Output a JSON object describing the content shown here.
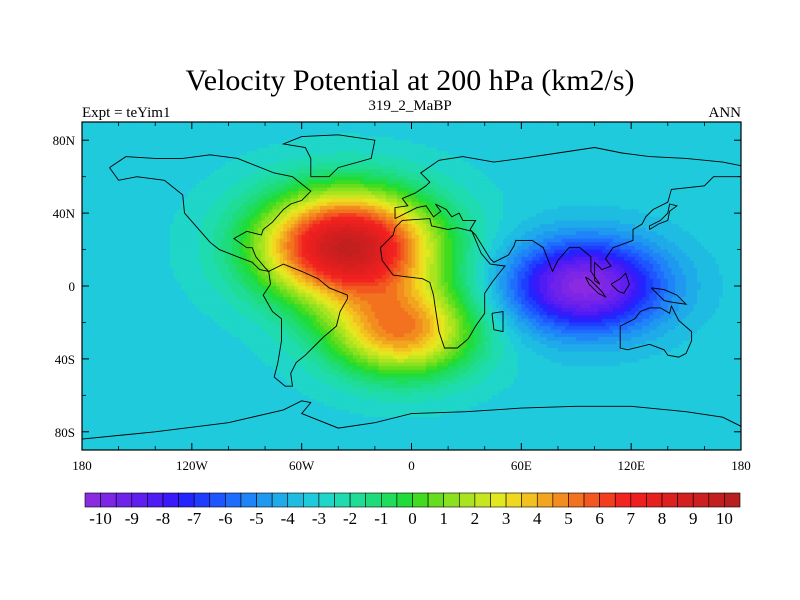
{
  "title": "Velocity Potential at 200 hPa (km2/s)",
  "left_string": "Expt = teYim1",
  "center_string": "319_2_MaBP",
  "right_string": "ANN",
  "chart_data": {
    "type": "heatmap",
    "title": "Velocity Potential at 200 hPa (km2/s)",
    "xlim": [
      -180,
      180
    ],
    "ylim": [
      -90,
      90
    ],
    "x_ticks": [
      {
        "value": -180,
        "label": "180"
      },
      {
        "value": -120,
        "label": "120W"
      },
      {
        "value": -60,
        "label": "60W"
      },
      {
        "value": 0,
        "label": "0"
      },
      {
        "value": 60,
        "label": "60E"
      },
      {
        "value": 120,
        "label": "120E"
      },
      {
        "value": 180,
        "label": "180"
      }
    ],
    "y_ticks": [
      {
        "value": 80,
        "label": "80N"
      },
      {
        "value": 40,
        "label": "40N"
      },
      {
        "value": 0,
        "label": "0"
      },
      {
        "value": -40,
        "label": "40S"
      },
      {
        "value": -80,
        "label": "80S"
      }
    ],
    "background_value": -3.2,
    "field_features": [
      {
        "name": "maximum",
        "lon": -35,
        "lat": 22,
        "value": 9.6,
        "lon_radius": 48,
        "lat_radius": 30
      },
      {
        "name": "secondary maximum",
        "lon": -5,
        "lat": -25,
        "value": 4.5,
        "lon_radius": 40,
        "lat_radius": 25
      },
      {
        "name": "minimum",
        "lon": 95,
        "lat": 0,
        "value": -10.3,
        "lon_radius": 42,
        "lat_radius": 25
      }
    ],
    "colorbar": {
      "min": -10.5,
      "max": 10.5,
      "step": 0.5,
      "tick_values": [
        -10,
        -9,
        -8,
        -7,
        -6,
        -5,
        -4,
        -3,
        -2,
        -1,
        0,
        1,
        2,
        3,
        4,
        5,
        6,
        7,
        8,
        9,
        10
      ],
      "tick_labels": [
        "-10",
        "-9",
        "-8",
        "-7",
        "-6",
        "-5",
        "-4",
        "-3",
        "-2",
        "-1",
        "0",
        "1",
        "2",
        "3",
        "4",
        "5",
        "6",
        "7",
        "8",
        "9",
        "10"
      ],
      "colors": [
        "#8a2be2",
        "#7d26e6",
        "#6f22ea",
        "#601ff0",
        "#4f1cf4",
        "#3a1af8",
        "#2424ff",
        "#1f3dff",
        "#1f55ff",
        "#1f6dff",
        "#1f84f7",
        "#1f98f0",
        "#1fabea",
        "#1fbce2",
        "#1fcadc",
        "#1fd6c8",
        "#1fdcb0",
        "#1fdc96",
        "#1fdc7a",
        "#1fdc5a",
        "#1fdc3a",
        "#41dc1f",
        "#66de1f",
        "#8ae21f",
        "#aae41f",
        "#c8e61f",
        "#e2e81f",
        "#f0d81f",
        "#f2c01f",
        "#f2a61f",
        "#f28c1f",
        "#f2721f",
        "#f2581f",
        "#f23e1f",
        "#f2241f",
        "#ee1f1f",
        "#e61f1f",
        "#dc1f1f",
        "#d41f1f",
        "#cc1f1f",
        "#c21f1f",
        "#b81f1f"
      ]
    },
    "continent_outlines": [
      {
        "name": "africa",
        "points": [
          [
            -17,
            21
          ],
          [
            -16,
            14
          ],
          [
            -10,
            6
          ],
          [
            -2,
            5
          ],
          [
            6,
            4
          ],
          [
            10,
            2
          ],
          [
            12,
            -5
          ],
          [
            13,
            -12
          ],
          [
            15,
            -25
          ],
          [
            18,
            -34
          ],
          [
            25,
            -34
          ],
          [
            31,
            -29
          ],
          [
            35,
            -22
          ],
          [
            40,
            -15
          ],
          [
            40,
            -4
          ],
          [
            44,
            2
          ],
          [
            51,
            11
          ],
          [
            43,
            12
          ],
          [
            38,
            18
          ],
          [
            33,
            30
          ],
          [
            25,
            32
          ],
          [
            20,
            31
          ],
          [
            11,
            33
          ],
          [
            10,
            37
          ],
          [
            -5,
            36
          ],
          [
            -9,
            32
          ],
          [
            -10,
            28
          ],
          [
            -17,
            21
          ]
        ]
      },
      {
        "name": "madagascar",
        "points": [
          [
            44,
            -15
          ],
          [
            50,
            -14
          ],
          [
            50,
            -25
          ],
          [
            45,
            -24
          ],
          [
            44,
            -15
          ]
        ]
      },
      {
        "name": "eurasia",
        "points": [
          [
            -9,
            37
          ],
          [
            -9,
            43
          ],
          [
            -2,
            44
          ],
          [
            -5,
            48
          ],
          [
            2,
            51
          ],
          [
            8,
            55
          ],
          [
            10,
            57
          ],
          [
            5,
            62
          ],
          [
            15,
            69
          ],
          [
            28,
            71
          ],
          [
            45,
            68
          ],
          [
            60,
            70
          ],
          [
            80,
            73
          ],
          [
            100,
            76
          ],
          [
            115,
            73
          ],
          [
            130,
            71
          ],
          [
            150,
            70
          ],
          [
            170,
            68
          ],
          [
            180,
            66
          ],
          [
            180,
            60
          ],
          [
            165,
            60
          ],
          [
            160,
            55
          ],
          [
            142,
            53
          ],
          [
            140,
            46
          ],
          [
            132,
            42
          ],
          [
            128,
            38
          ],
          [
            126,
            34
          ],
          [
            121,
            31
          ],
          [
            121,
            25
          ],
          [
            110,
            21
          ],
          [
            106,
            15
          ],
          [
            109,
            11
          ],
          [
            104,
            9
          ],
          [
            100,
            13
          ],
          [
            100,
            3
          ],
          [
            103,
            1
          ],
          [
            98,
            8
          ],
          [
            98,
            16
          ],
          [
            92,
            21
          ],
          [
            86,
            21
          ],
          [
            80,
            14
          ],
          [
            77,
            8
          ],
          [
            72,
            21
          ],
          [
            66,
            25
          ],
          [
            57,
            25
          ],
          [
            56,
            22
          ],
          [
            53,
            17
          ],
          [
            45,
            13
          ],
          [
            43,
            15
          ],
          [
            35,
            28
          ],
          [
            32,
            31
          ],
          [
            35,
            36
          ],
          [
            28,
            36
          ],
          [
            26,
            40
          ],
          [
            22,
            38
          ],
          [
            19,
            42
          ],
          [
            13,
            45
          ],
          [
            16,
            41
          ],
          [
            12,
            38
          ],
          [
            8,
            44
          ],
          [
            3,
            43
          ],
          [
            -9,
            37
          ]
        ]
      },
      {
        "name": "north_america",
        "points": [
          [
            -165,
            65
          ],
          [
            -160,
            58
          ],
          [
            -150,
            60
          ],
          [
            -135,
            58
          ],
          [
            -125,
            50
          ],
          [
            -124,
            40
          ],
          [
            -117,
            32
          ],
          [
            -110,
            24
          ],
          [
            -105,
            20
          ],
          [
            -95,
            16
          ],
          [
            -87,
            13
          ],
          [
            -83,
            9
          ],
          [
            -78,
            8
          ],
          [
            -80,
            10
          ],
          [
            -85,
            16
          ],
          [
            -87,
            21
          ],
          [
            -90,
            21
          ],
          [
            -97,
            26
          ],
          [
            -90,
            30
          ],
          [
            -82,
            28
          ],
          [
            -81,
            31
          ],
          [
            -76,
            35
          ],
          [
            -70,
            42
          ],
          [
            -66,
            45
          ],
          [
            -60,
            47
          ],
          [
            -55,
            52
          ],
          [
            -60,
            56
          ],
          [
            -65,
            60
          ],
          [
            -75,
            62
          ],
          [
            -85,
            66
          ],
          [
            -95,
            70
          ],
          [
            -110,
            72
          ],
          [
            -125,
            70
          ],
          [
            -140,
            70
          ],
          [
            -156,
            71
          ],
          [
            -165,
            65
          ]
        ]
      },
      {
        "name": "south_america",
        "points": [
          [
            -78,
            8
          ],
          [
            -77,
            1
          ],
          [
            -81,
            -5
          ],
          [
            -76,
            -14
          ],
          [
            -71,
            -18
          ],
          [
            -71,
            -30
          ],
          [
            -73,
            -42
          ],
          [
            -75,
            -50
          ],
          [
            -69,
            -55
          ],
          [
            -65,
            -55
          ],
          [
            -66,
            -48
          ],
          [
            -63,
            -42
          ],
          [
            -58,
            -38
          ],
          [
            -48,
            -28
          ],
          [
            -41,
            -22
          ],
          [
            -39,
            -14
          ],
          [
            -35,
            -7
          ],
          [
            -35,
            -5
          ],
          [
            -45,
            -1
          ],
          [
            -51,
            4
          ],
          [
            -60,
            8
          ],
          [
            -70,
            12
          ],
          [
            -78,
            8
          ]
        ]
      },
      {
        "name": "greenland",
        "points": [
          [
            -55,
            60
          ],
          [
            -45,
            60
          ],
          [
            -40,
            65
          ],
          [
            -22,
            70
          ],
          [
            -20,
            80
          ],
          [
            -40,
            83
          ],
          [
            -60,
            82
          ],
          [
            -70,
            78
          ],
          [
            -58,
            76
          ],
          [
            -55,
            70
          ],
          [
            -55,
            60
          ]
        ]
      },
      {
        "name": "australia",
        "points": [
          [
            114,
            -22
          ],
          [
            114,
            -34
          ],
          [
            118,
            -35
          ],
          [
            130,
            -32
          ],
          [
            138,
            -35
          ],
          [
            140,
            -38
          ],
          [
            146,
            -39
          ],
          [
            150,
            -37
          ],
          [
            153,
            -30
          ],
          [
            153,
            -25
          ],
          [
            146,
            -19
          ],
          [
            142,
            -11
          ],
          [
            141,
            -15
          ],
          [
            136,
            -12
          ],
          [
            130,
            -12
          ],
          [
            125,
            -14
          ],
          [
            122,
            -18
          ],
          [
            114,
            -22
          ]
        ]
      },
      {
        "name": "japan",
        "points": [
          [
            130,
            31
          ],
          [
            135,
            34
          ],
          [
            140,
            36
          ],
          [
            141,
            41
          ],
          [
            145,
            44
          ],
          [
            141,
            45
          ],
          [
            140,
            40
          ],
          [
            136,
            36
          ],
          [
            130,
            33
          ],
          [
            130,
            31
          ]
        ]
      },
      {
        "name": "borneo",
        "points": [
          [
            109,
            1
          ],
          [
            113,
            -3
          ],
          [
            116,
            -4
          ],
          [
            119,
            1
          ],
          [
            117,
            7
          ],
          [
            114,
            4
          ],
          [
            109,
            1
          ]
        ]
      },
      {
        "name": "sumatra",
        "points": [
          [
            95,
            5
          ],
          [
            98,
            3
          ],
          [
            104,
            -3
          ],
          [
            106,
            -6
          ],
          [
            102,
            -4
          ],
          [
            97,
            1
          ],
          [
            95,
            5
          ]
        ]
      },
      {
        "name": "new_guinea",
        "points": [
          [
            131,
            -1
          ],
          [
            138,
            -2
          ],
          [
            145,
            -5
          ],
          [
            150,
            -10
          ],
          [
            143,
            -9
          ],
          [
            138,
            -8
          ],
          [
            131,
            -1
          ]
        ]
      },
      {
        "name": "antarctica",
        "points": [
          [
            -180,
            -84
          ],
          [
            -140,
            -80
          ],
          [
            -100,
            -75
          ],
          [
            -70,
            -68
          ],
          [
            -60,
            -63
          ],
          [
            -55,
            -64
          ],
          [
            -60,
            -70
          ],
          [
            -40,
            -78
          ],
          [
            -20,
            -75
          ],
          [
            0,
            -70
          ],
          [
            30,
            -69
          ],
          [
            60,
            -67
          ],
          [
            90,
            -66
          ],
          [
            120,
            -66
          ],
          [
            150,
            -69
          ],
          [
            170,
            -72
          ],
          [
            180,
            -77
          ]
        ]
      }
    ]
  }
}
